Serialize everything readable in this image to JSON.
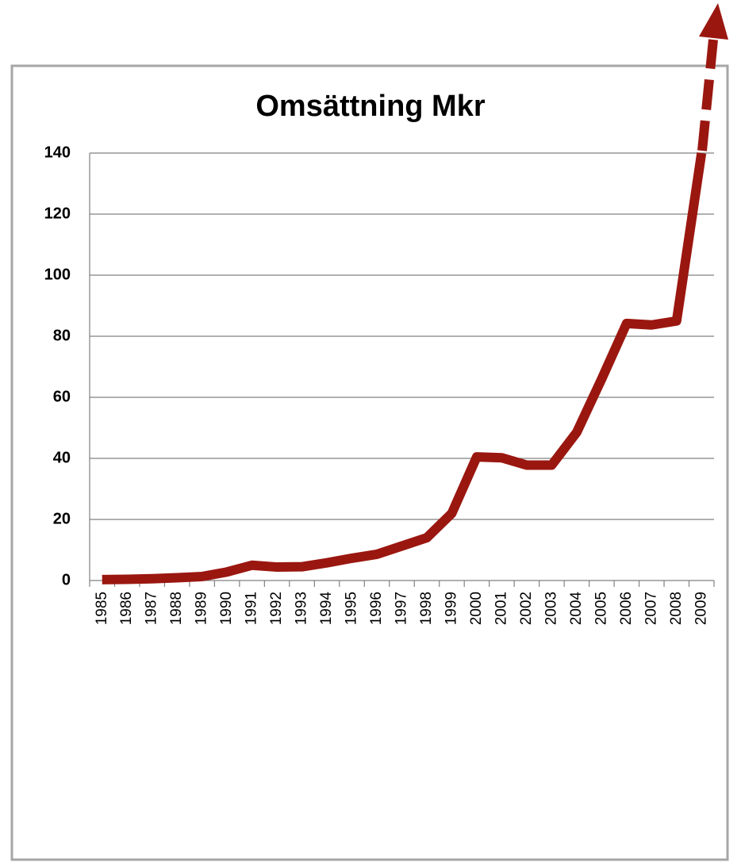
{
  "chart_data": {
    "type": "line",
    "title": "Omsättning Mkr",
    "categories": [
      "1985",
      "1986",
      "1987",
      "1988",
      "1989",
      "1990",
      "1991",
      "1992",
      "1993",
      "1994",
      "1995",
      "1996",
      "1997",
      "1998",
      "1999",
      "2000",
      "2001",
      "2002",
      "2003",
      "2004",
      "2005",
      "2006",
      "2007",
      "2008",
      "2009"
    ],
    "series": [
      {
        "name": "Omsättning",
        "color": "#9a1710",
        "values": [
          0.3,
          0.4,
          0.6,
          0.9,
          1.3,
          2.8,
          5,
          4.4,
          4.5,
          5.8,
          7.3,
          8.6,
          11.3,
          14,
          22,
          40.5,
          40.2,
          37.8,
          37.8,
          48.5,
          66,
          84.2,
          83.7,
          85,
          140
        ]
      }
    ],
    "ylim": [
      0,
      140
    ],
    "yticks": [
      0,
      20,
      40,
      60,
      80,
      100,
      120,
      140
    ],
    "grid": true
  }
}
